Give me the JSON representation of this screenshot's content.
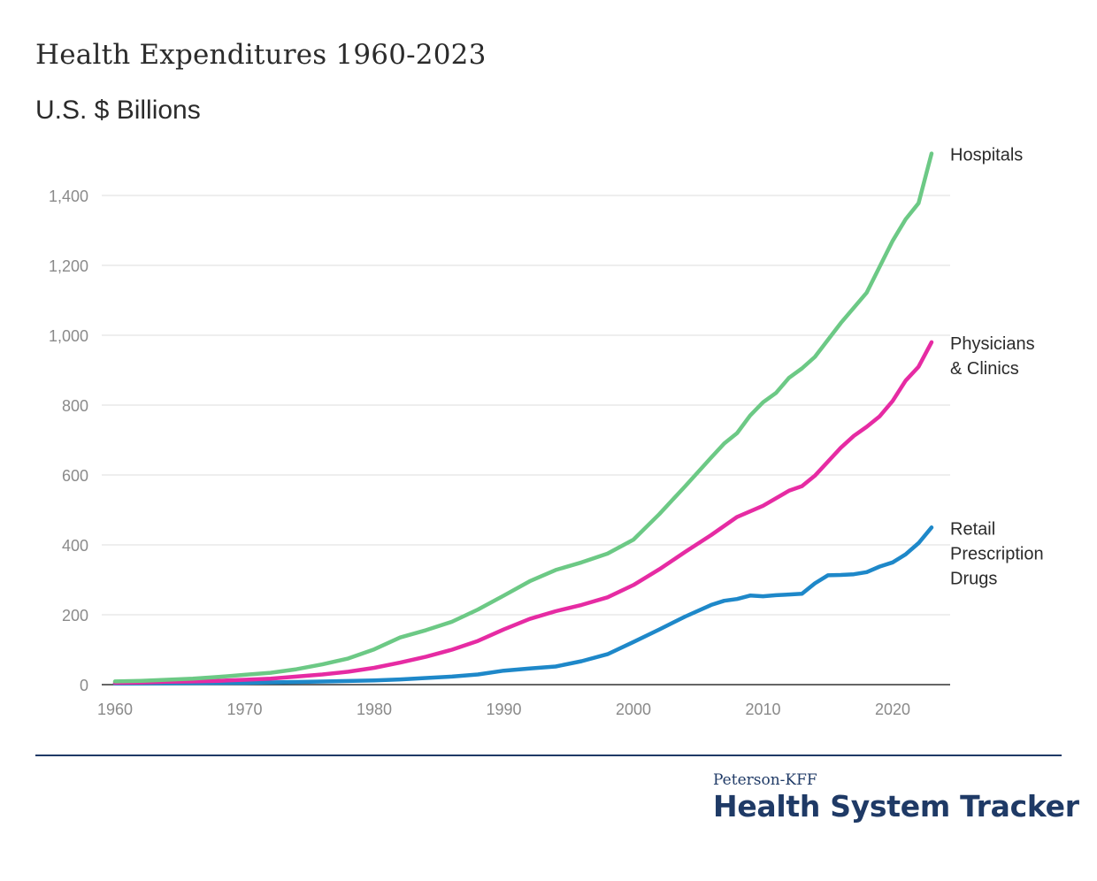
{
  "header": {
    "title": "Health Expenditures 1960-2023",
    "subtitle": "U.S. $ Billions"
  },
  "footer": {
    "brand_small": "Peterson-KFF",
    "brand_big": "Health System Tracker"
  },
  "colors": {
    "hospitals": "#6cc985",
    "physicians": "#e62ba3",
    "drugs": "#1e88c9",
    "grid": "#dddddd",
    "axis": "#333333",
    "brand": "#1f3a66"
  },
  "chart_data": {
    "type": "line",
    "title": "Health Expenditures 1960-2023",
    "ylabel": "U.S. $ Billions",
    "xlabel": "",
    "xlim": [
      1960,
      2023
    ],
    "ylim": [
      0,
      1520
    ],
    "x_ticks": [
      "1960",
      "1970",
      "1980",
      "1990",
      "2000",
      "2010",
      "2020"
    ],
    "y_ticks": [
      "0",
      "200",
      "400",
      "600",
      "800",
      "1,000",
      "1,200",
      "1,400"
    ],
    "grid": true,
    "series": [
      {
        "name": "Hospitals",
        "label_lines": [
          "Hospitals"
        ],
        "color_key": "hospitals",
        "x": [
          1960,
          1962,
          1964,
          1966,
          1968,
          1970,
          1972,
          1974,
          1976,
          1978,
          1980,
          1982,
          1984,
          1986,
          1988,
          1990,
          1992,
          1994,
          1996,
          1998,
          2000,
          2002,
          2004,
          2006,
          2007,
          2008,
          2009,
          2010,
          2011,
          2012,
          2013,
          2014,
          2016,
          2018,
          2020,
          2021,
          2022,
          2023
        ],
        "values": [
          9,
          11,
          14,
          17,
          22,
          28,
          34,
          44,
          58,
          75,
          101,
          135,
          156,
          180,
          215,
          255,
          296,
          328,
          350,
          375,
          415,
          488,
          568,
          650,
          690,
          720,
          770,
          808,
          835,
          878,
          905,
          938,
          1035,
          1122,
          1270,
          1332,
          1378,
          1520
        ]
      },
      {
        "name": "Physicians & Clinics",
        "label_lines": [
          "Physicians",
          "& Clinics"
        ],
        "color_key": "physicians",
        "x": [
          1960,
          1962,
          1964,
          1966,
          1968,
          1970,
          1972,
          1974,
          1976,
          1978,
          1980,
          1982,
          1984,
          1986,
          1988,
          1990,
          1992,
          1994,
          1996,
          1998,
          2000,
          2002,
          2004,
          2006,
          2008,
          2010,
          2012,
          2013,
          2014,
          2016,
          2017,
          2018,
          2019,
          2020,
          2021,
          2022,
          2023
        ],
        "values": [
          5,
          6,
          8,
          9,
          11,
          14,
          17,
          23,
          29,
          37,
          48,
          63,
          80,
          100,
          125,
          158,
          188,
          210,
          228,
          250,
          285,
          330,
          380,
          428,
          480,
          512,
          555,
          568,
          598,
          678,
          712,
          738,
          768,
          812,
          870,
          910,
          980
        ]
      },
      {
        "name": "Retail Prescription Drugs",
        "label_lines": [
          "Retail",
          "Prescription",
          "Drugs"
        ],
        "color_key": "drugs",
        "x": [
          1960,
          1965,
          1970,
          1975,
          1980,
          1982,
          1984,
          1986,
          1988,
          1990,
          1992,
          1994,
          1996,
          1998,
          2000,
          2002,
          2004,
          2006,
          2007,
          2008,
          2009,
          2010,
          2011,
          2012,
          2013,
          2014,
          2015,
          2016,
          2017,
          2018,
          2019,
          2020,
          2021,
          2022,
          2023
        ],
        "values": [
          3,
          4,
          5,
          8,
          12,
          15,
          19,
          23,
          29,
          40,
          46,
          52,
          67,
          87,
          122,
          158,
          195,
          228,
          240,
          245,
          255,
          253,
          256,
          258,
          260,
          290,
          313,
          314,
          316,
          322,
          338,
          350,
          373,
          405,
          450
        ]
      }
    ]
  }
}
